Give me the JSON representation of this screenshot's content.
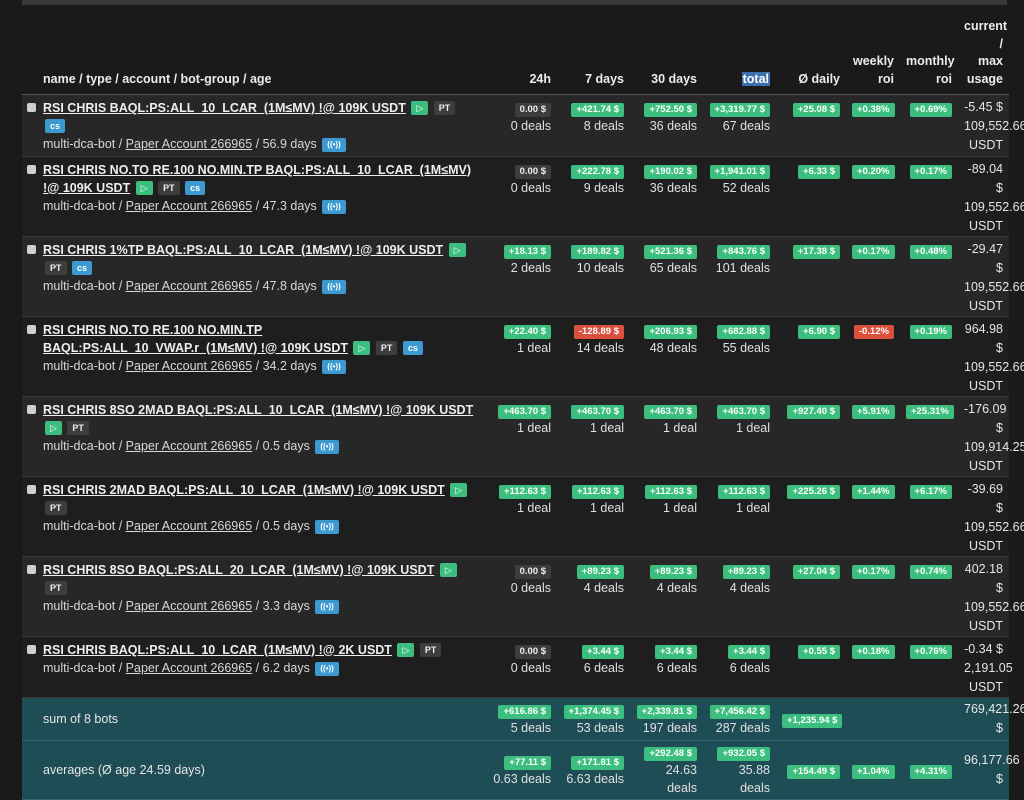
{
  "headers": {
    "name": "name / type / account / bot-group / age",
    "h24": "24h",
    "d7": "7 days",
    "d30": "30 days",
    "total": "total",
    "daily": "Ø daily",
    "weekly_1": "weekly",
    "weekly_2": "roi",
    "monthly_1": "monthly",
    "monthly_2": "roi",
    "usage_1": "current /",
    "usage_2": "max",
    "usage_3": "usage"
  },
  "tags": {
    "play": "▷",
    "pt": "PT",
    "cs": "cs",
    "radio": "((•))"
  },
  "bots": [
    {
      "name": "RSI CHRIS BAQL:PS:ALL_10_LCAR_(1M≤MV) !@ 109K USDT",
      "cs": true,
      "type": "multi-dca-bot",
      "account": "Paper Account 266965",
      "age": "56.9 days",
      "h24": {
        "v": "0.00 $",
        "d": "0 deals",
        "s": "zero"
      },
      "d7": {
        "v": "+421.74 $",
        "d": "8 deals",
        "s": "pos"
      },
      "d30": {
        "v": "+752.50 $",
        "d": "36 deals",
        "s": "pos"
      },
      "total": {
        "v": "+3,319.77 $",
        "d": "67 deals",
        "s": "pos"
      },
      "daily": {
        "v": "+25.08 $",
        "s": "pos"
      },
      "weekly": {
        "v": "+0.38%",
        "s": "pos"
      },
      "monthly": {
        "v": "+0.69%",
        "s": "pos"
      },
      "usage": [
        "-5.45 $",
        "109,552.66",
        "USDT"
      ]
    },
    {
      "name": "RSI CHRIS NO.TO RE.100 NO.MIN.TP BAQL:PS:ALL_10_LCAR_(1M≤MV) !@ 109K USDT",
      "cs": true,
      "type": "multi-dca-bot",
      "account": "Paper Account 266965",
      "age": "47.3 days",
      "h24": {
        "v": "0.00 $",
        "d": "0 deals",
        "s": "zero"
      },
      "d7": {
        "v": "+222.78 $",
        "d": "9 deals",
        "s": "pos"
      },
      "d30": {
        "v": "+190.02 $",
        "d": "36 deals",
        "s": "pos"
      },
      "total": {
        "v": "+1,941.01 $",
        "d": "52 deals",
        "s": "pos"
      },
      "daily": {
        "v": "+6.33 $",
        "s": "pos"
      },
      "weekly": {
        "v": "+0.20%",
        "s": "pos"
      },
      "monthly": {
        "v": "+0.17%",
        "s": "pos"
      },
      "usage": [
        "-89.04 $",
        "109,552.66",
        "USDT"
      ]
    },
    {
      "name": "RSI CHRIS 1%TP BAQL:PS:ALL_10_LCAR_(1M≤MV) !@ 109K USDT",
      "cs": true,
      "type": "multi-dca-bot",
      "account": "Paper Account 266965",
      "age": "47.8 days",
      "h24": {
        "v": "+18.13 $",
        "d": "2 deals",
        "s": "pos"
      },
      "d7": {
        "v": "+189.82 $",
        "d": "10 deals",
        "s": "pos"
      },
      "d30": {
        "v": "+521.36 $",
        "d": "65 deals",
        "s": "pos"
      },
      "total": {
        "v": "+843.76 $",
        "d": "101 deals",
        "s": "pos"
      },
      "daily": {
        "v": "+17.38 $",
        "s": "pos"
      },
      "weekly": {
        "v": "+0.17%",
        "s": "pos"
      },
      "monthly": {
        "v": "+0.48%",
        "s": "pos"
      },
      "usage": [
        "-29.47 $",
        "109,552.66",
        "USDT"
      ]
    },
    {
      "name": "RSI CHRIS NO.TO RE.100 NO.MIN.TP BAQL:PS:ALL_10_VWAP.r_(1M≤MV) !@ 109K USDT",
      "cs": true,
      "type": "multi-dca-bot",
      "account": "Paper Account 266965",
      "age": "34.2 days",
      "h24": {
        "v": "+22.40 $",
        "d": "1 deal",
        "s": "pos"
      },
      "d7": {
        "v": "-128.89 $",
        "d": "14 deals",
        "s": "neg"
      },
      "d30": {
        "v": "+206.93 $",
        "d": "48 deals",
        "s": "pos"
      },
      "total": {
        "v": "+682.88 $",
        "d": "55 deals",
        "s": "pos"
      },
      "daily": {
        "v": "+6.90 $",
        "s": "pos"
      },
      "weekly": {
        "v": "-0.12%",
        "s": "neg"
      },
      "monthly": {
        "v": "+0.19%",
        "s": "pos"
      },
      "usage": [
        "964.98 $",
        "109,552.66",
        "USDT"
      ]
    },
    {
      "name": "RSI CHRIS 8SO 2MAD BAQL:PS:ALL_10_LCAR_(1M≤MV) !@ 109K USDT",
      "cs": false,
      "type": "multi-dca-bot",
      "account": "Paper Account 266965",
      "age": "0.5 days",
      "h24": {
        "v": "+463.70 $",
        "d": "1 deal",
        "s": "pos"
      },
      "d7": {
        "v": "+463.70 $",
        "d": "1 deal",
        "s": "pos"
      },
      "d30": {
        "v": "+463.70 $",
        "d": "1 deal",
        "s": "pos"
      },
      "total": {
        "v": "+463.70 $",
        "d": "1 deal",
        "s": "pos"
      },
      "daily": {
        "v": "+927.40 $",
        "s": "pos"
      },
      "weekly": {
        "v": "+5.91%",
        "s": "pos"
      },
      "monthly": {
        "v": "+25.31%",
        "s": "pos"
      },
      "usage": [
        "-176.09 $",
        "109,914.25",
        "USDT"
      ]
    },
    {
      "name": "RSI CHRIS 2MAD BAQL:PS:ALL_10_LCAR_(1M≤MV) !@ 109K USDT",
      "cs": false,
      "type": "multi-dca-bot",
      "account": "Paper Account 266965",
      "age": "0.5 days",
      "h24": {
        "v": "+112.63 $",
        "d": "1 deal",
        "s": "pos"
      },
      "d7": {
        "v": "+112.63 $",
        "d": "1 deal",
        "s": "pos"
      },
      "d30": {
        "v": "+112.63 $",
        "d": "1 deal",
        "s": "pos"
      },
      "total": {
        "v": "+112.63 $",
        "d": "1 deal",
        "s": "pos"
      },
      "daily": {
        "v": "+225.26 $",
        "s": "pos"
      },
      "weekly": {
        "v": "+1.44%",
        "s": "pos"
      },
      "monthly": {
        "v": "+6.17%",
        "s": "pos"
      },
      "usage": [
        "-39.69 $",
        "109,552.66",
        "USDT"
      ]
    },
    {
      "name": "RSI CHRIS 8SO BAQL:PS:ALL_20_LCAR_(1M≤MV) !@ 109K USDT",
      "cs": false,
      "type": "multi-dca-bot",
      "account": "Paper Account 266965",
      "age": "3.3 days",
      "h24": {
        "v": "0.00 $",
        "d": "0 deals",
        "s": "zero"
      },
      "d7": {
        "v": "+89.23 $",
        "d": "4 deals",
        "s": "pos"
      },
      "d30": {
        "v": "+89.23 $",
        "d": "4 deals",
        "s": "pos"
      },
      "total": {
        "v": "+89.23 $",
        "d": "4 deals",
        "s": "pos"
      },
      "daily": {
        "v": "+27.04 $",
        "s": "pos"
      },
      "weekly": {
        "v": "+0.17%",
        "s": "pos"
      },
      "monthly": {
        "v": "+0.74%",
        "s": "pos"
      },
      "usage": [
        "402.18 $",
        "109,552.66",
        "USDT"
      ]
    },
    {
      "name": "RSI CHRIS BAQL:PS:ALL_10_LCAR_(1M≤MV) !@ 2K USDT",
      "cs": false,
      "type": "multi-dca-bot",
      "account": "Paper Account 266965",
      "age": "6.2 days",
      "h24": {
        "v": "0.00 $",
        "d": "0 deals",
        "s": "zero"
      },
      "d7": {
        "v": "+3.44 $",
        "d": "6 deals",
        "s": "pos"
      },
      "d30": {
        "v": "+3.44 $",
        "d": "6 deals",
        "s": "pos"
      },
      "total": {
        "v": "+3.44 $",
        "d": "6 deals",
        "s": "pos"
      },
      "daily": {
        "v": "+0.55 $",
        "s": "pos"
      },
      "weekly": {
        "v": "+0.18%",
        "s": "pos"
      },
      "monthly": {
        "v": "+0.76%",
        "s": "pos"
      },
      "usage": [
        "-0.34 $",
        "2,191.05",
        "USDT"
      ]
    }
  ],
  "sum": {
    "label": "sum of 8 bots",
    "h24": {
      "v": "+616.86 $",
      "d": "5 deals"
    },
    "d7": {
      "v": "+1,374.45 $",
      "d": "53 deals"
    },
    "d30": {
      "v": "+2,339.81 $",
      "d": "197 deals"
    },
    "total": {
      "v": "+7,456.42 $",
      "d": "287 deals"
    },
    "daily": "+1,235.94 $",
    "usage_1": "769,421.26",
    "usage_2": "$"
  },
  "avg": {
    "label": "averages (Ø age 24.59 days)",
    "h24": {
      "v": "+77.11 $",
      "d": "0.63 deals"
    },
    "d7": {
      "v": "+171.81 $",
      "d": "6.63 deals"
    },
    "d30": {
      "v": "+292.48 $",
      "d": "24.63 deals"
    },
    "total": {
      "v": "+932.05 $",
      "d": "35.88 deals"
    },
    "daily": "+154.49 $",
    "weekly": "+1.04%",
    "monthly": "+4.31%",
    "usage_1": "96,177.66",
    "usage_2": "$"
  }
}
